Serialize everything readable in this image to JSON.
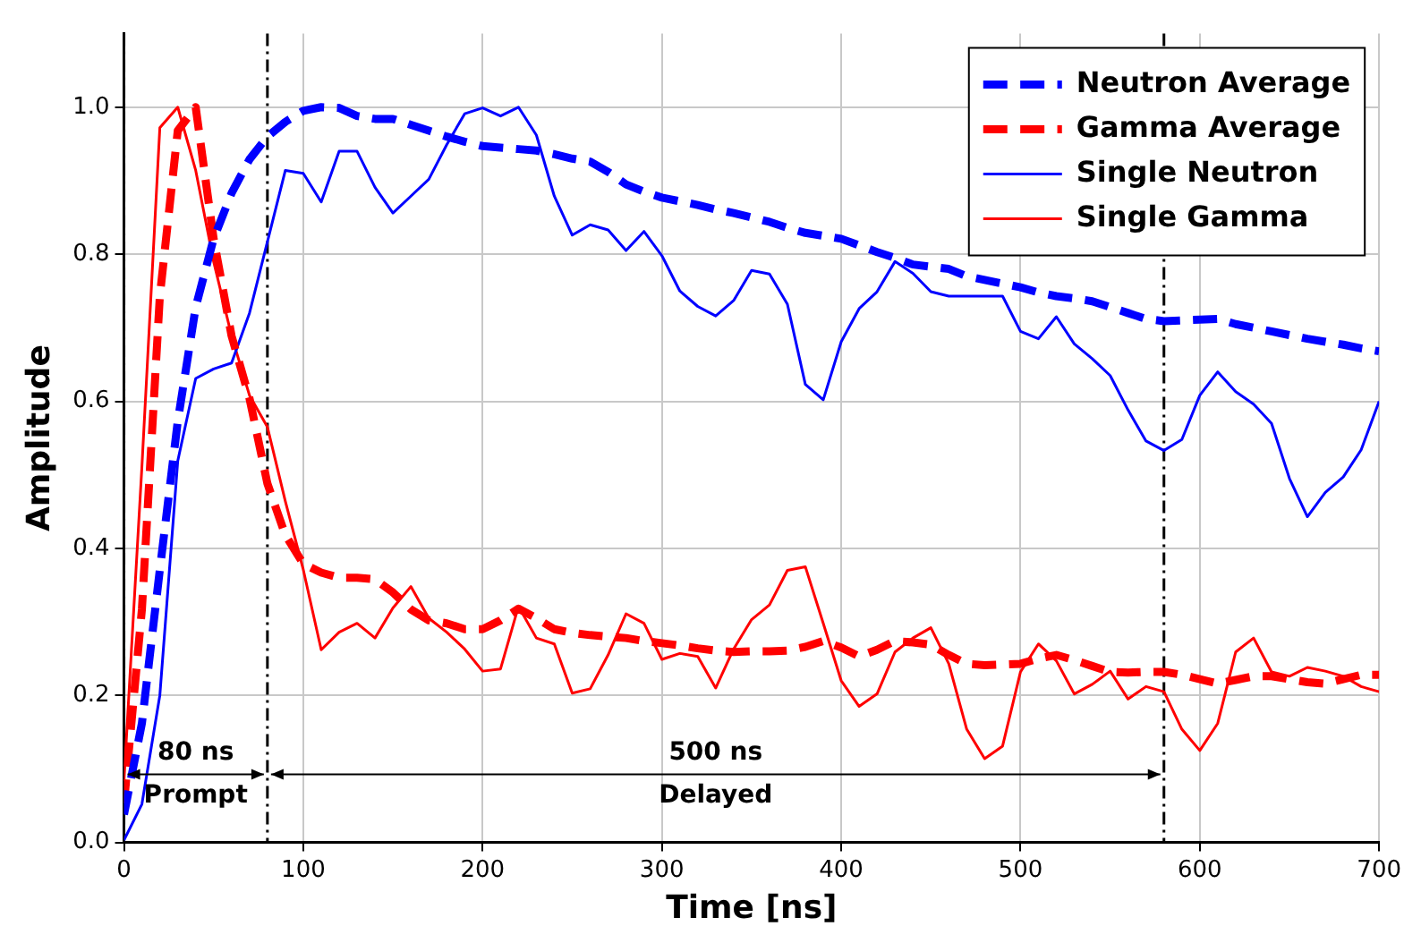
{
  "chart_data": {
    "type": "line",
    "xlabel": "Time [ns]",
    "ylabel": "Amplitude",
    "x": [
      0,
      10,
      20,
      30,
      40,
      50,
      60,
      70,
      80,
      90,
      100,
      110,
      120,
      130,
      140,
      150,
      160,
      170,
      180,
      190,
      200,
      210,
      220,
      230,
      240,
      250,
      260,
      270,
      280,
      290,
      300,
      310,
      320,
      330,
      340,
      350,
      360,
      370,
      380,
      390,
      400,
      410,
      420,
      430,
      440,
      450,
      460,
      470,
      480,
      490,
      500,
      510,
      520,
      530,
      540,
      550,
      560,
      570,
      580,
      590,
      600,
      610,
      620,
      630,
      640,
      650,
      660,
      670,
      680,
      690,
      700
    ],
    "series": [
      {
        "name": "Neutron Average",
        "color": "#0000ff",
        "line_style": "dashed",
        "values": [
          0.038,
          0.162,
          0.371,
          0.573,
          0.728,
          0.821,
          0.883,
          0.929,
          0.96,
          0.98,
          0.995,
          1.0,
          0.999,
          0.988,
          0.984,
          0.984,
          0.976,
          0.968,
          0.96,
          0.953,
          0.947,
          0.945,
          0.943,
          0.941,
          0.936,
          0.93,
          0.926,
          0.912,
          0.895,
          0.885,
          0.877,
          0.872,
          0.867,
          0.861,
          0.856,
          0.85,
          0.844,
          0.836,
          0.829,
          0.825,
          0.821,
          0.812,
          0.803,
          0.795,
          0.786,
          0.783,
          0.78,
          0.77,
          0.765,
          0.76,
          0.755,
          0.748,
          0.743,
          0.74,
          0.736,
          0.728,
          0.72,
          0.712,
          0.709,
          0.71,
          0.711,
          0.712,
          0.705,
          0.7,
          0.695,
          0.69,
          0.685,
          0.681,
          0.677,
          0.672,
          0.668
        ]
      },
      {
        "name": "Gamma Average",
        "color": "#ff0000",
        "line_style": "dashed",
        "values": [
          0.053,
          0.317,
          0.743,
          0.968,
          1.0,
          0.821,
          0.689,
          0.604,
          0.488,
          0.418,
          0.379,
          0.367,
          0.36,
          0.36,
          0.358,
          0.34,
          0.317,
          0.302,
          0.298,
          0.29,
          0.29,
          0.302,
          0.318,
          0.305,
          0.29,
          0.285,
          0.282,
          0.28,
          0.278,
          0.274,
          0.271,
          0.268,
          0.264,
          0.261,
          0.259,
          0.26,
          0.26,
          0.261,
          0.266,
          0.274,
          0.265,
          0.253,
          0.262,
          0.274,
          0.272,
          0.269,
          0.255,
          0.243,
          0.241,
          0.242,
          0.243,
          0.25,
          0.255,
          0.248,
          0.24,
          0.232,
          0.231,
          0.232,
          0.232,
          0.228,
          0.222,
          0.216,
          0.221,
          0.226,
          0.226,
          0.222,
          0.218,
          0.216,
          0.222,
          0.228,
          0.228
        ]
      },
      {
        "name": "Single Neutron",
        "color": "#0000ff",
        "line_style": "solid",
        "values": [
          0.003,
          0.052,
          0.2,
          0.519,
          0.631,
          0.644,
          0.652,
          0.72,
          0.817,
          0.914,
          0.91,
          0.871,
          0.94,
          0.94,
          0.891,
          0.856,
          0.879,
          0.902,
          0.949,
          0.991,
          0.999,
          0.988,
          1.0,
          0.962,
          0.879,
          0.826,
          0.84,
          0.833,
          0.805,
          0.831,
          0.798,
          0.75,
          0.729,
          0.716,
          0.737,
          0.778,
          0.773,
          0.732,
          0.623,
          0.602,
          0.681,
          0.726,
          0.749,
          0.79,
          0.774,
          0.749,
          0.743,
          0.743,
          0.743,
          0.743,
          0.695,
          0.685,
          0.715,
          0.678,
          0.658,
          0.635,
          0.588,
          0.546,
          0.533,
          0.548,
          0.608,
          0.64,
          0.613,
          0.596,
          0.57,
          0.495,
          0.443,
          0.476,
          0.497,
          0.534,
          0.6
        ]
      },
      {
        "name": "Single Gamma",
        "color": "#ff0000",
        "line_style": "solid",
        "values": [
          0.084,
          0.511,
          0.972,
          1.0,
          0.914,
          0.79,
          0.689,
          0.608,
          0.565,
          0.464,
          0.371,
          0.262,
          0.286,
          0.298,
          0.278,
          0.319,
          0.348,
          0.305,
          0.286,
          0.263,
          0.233,
          0.236,
          0.321,
          0.278,
          0.27,
          0.203,
          0.209,
          0.255,
          0.311,
          0.298,
          0.249,
          0.257,
          0.253,
          0.21,
          0.263,
          0.303,
          0.323,
          0.37,
          0.375,
          0.298,
          0.22,
          0.185,
          0.202,
          0.259,
          0.278,
          0.292,
          0.243,
          0.154,
          0.114,
          0.131,
          0.232,
          0.27,
          0.247,
          0.202,
          0.215,
          0.233,
          0.195,
          0.212,
          0.205,
          0.154,
          0.125,
          0.162,
          0.259,
          0.278,
          0.232,
          0.226,
          0.238,
          0.233,
          0.226,
          0.212,
          0.205
        ]
      }
    ],
    "xlim": [
      0,
      700
    ],
    "xticks": [
      0,
      100,
      200,
      300,
      400,
      500,
      600,
      700
    ],
    "ylim": [
      0,
      1.1
    ],
    "yticks": [
      {
        "value": 0,
        "label": "0.0"
      },
      0.2,
      0.4,
      0.6,
      0.8,
      {
        "value": 1,
        "label": "1.0"
      }
    ],
    "ref_lines": [
      {
        "axis": "x",
        "value": 0,
        "color": "#000000",
        "line_style": "dashdot"
      },
      {
        "axis": "x",
        "value": 80,
        "color": "#000000",
        "line_style": "dashdot"
      },
      {
        "axis": "x",
        "value": 580,
        "color": "#000000",
        "line_style": "dashdot"
      }
    ],
    "annotations": [
      "80 ns",
      "Prompt",
      "500 ns",
      "Delayed"
    ],
    "grid": true,
    "legend": "top right",
    "marker": "none"
  }
}
